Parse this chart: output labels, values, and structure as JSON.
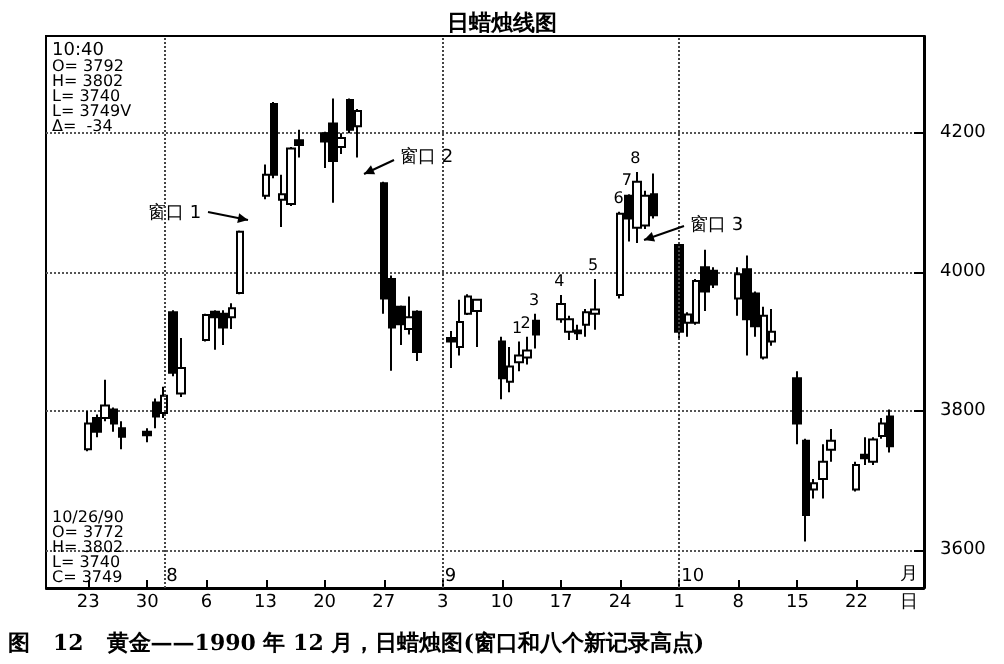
{
  "chart_data": {
    "type": "candlestick",
    "title": "日蜡烛线图",
    "x": [
      "1990-07-23",
      "1990-07-24",
      "1990-07-25",
      "1990-07-26",
      "1990-07-27",
      "1990-07-30",
      "1990-07-31",
      "1990-08-01",
      "1990-08-02",
      "1990-08-03",
      "1990-08-06",
      "1990-08-07",
      "1990-08-08",
      "1990-08-09",
      "1990-08-10",
      "1990-08-13",
      "1990-08-14",
      "1990-08-15",
      "1990-08-16",
      "1990-08-17",
      "1990-08-20",
      "1990-08-21",
      "1990-08-22",
      "1990-08-23",
      "1990-08-24",
      "1990-08-27",
      "1990-08-28",
      "1990-08-29",
      "1990-08-30",
      "1990-08-31",
      "1990-09-04",
      "1990-09-05",
      "1990-09-06",
      "1990-09-07",
      "1990-09-10",
      "1990-09-11",
      "1990-09-12",
      "1990-09-13",
      "1990-09-14",
      "1990-09-17",
      "1990-09-18",
      "1990-09-19",
      "1990-09-20",
      "1990-09-21",
      "1990-09-24",
      "1990-09-25",
      "1990-09-26",
      "1990-09-27",
      "1990-09-28",
      "1990-10-01",
      "1990-10-02",
      "1990-10-03",
      "1990-10-04",
      "1990-10-05",
      "1990-10-08",
      "1990-10-09",
      "1990-10-10",
      "1990-10-11",
      "1990-10-12",
      "1990-10-15",
      "1990-10-16",
      "1990-10-17",
      "1990-10-18",
      "1990-10-19",
      "1990-10-22",
      "1990-10-23",
      "1990-10-24",
      "1990-10-25",
      "1990-10-26"
    ],
    "ohlc": [
      [
        3745,
        3800,
        3742,
        3782
      ],
      [
        3790,
        3795,
        3762,
        3770
      ],
      [
        3790,
        3845,
        3785,
        3808
      ],
      [
        3802,
        3805,
        3770,
        3782
      ],
      [
        3775,
        3785,
        3745,
        3763
      ],
      [
        3770,
        3775,
        3755,
        3765
      ],
      [
        3812,
        3818,
        3775,
        3792
      ],
      [
        3797,
        3835,
        3790,
        3822
      ],
      [
        3942,
        3945,
        3850,
        3855
      ],
      [
        3825,
        3905,
        3820,
        3862
      ],
      [
        3902,
        3940,
        3900,
        3938
      ],
      [
        3943,
        3945,
        3888,
        3935
      ],
      [
        3940,
        3945,
        3895,
        3920
      ],
      [
        3935,
        3955,
        3918,
        3948
      ],
      [
        3970,
        4060,
        3968,
        4058
      ],
      [
        4110,
        4155,
        4105,
        4140
      ],
      [
        4242,
        4245,
        4135,
        4140
      ],
      [
        4104,
        4140,
        4065,
        4112
      ],
      [
        4098,
        4180,
        4095,
        4178
      ],
      [
        4190,
        4205,
        4165,
        4183
      ],
      [
        4200,
        4202,
        4150,
        4188
      ],
      [
        4214,
        4250,
        4100,
        4160
      ],
      [
        4180,
        4200,
        4170,
        4193
      ],
      [
        4248,
        4250,
        4200,
        4205
      ],
      [
        4210,
        4235,
        4165,
        4232
      ],
      [
        4128,
        4130,
        3940,
        3962
      ],
      [
        3990,
        3995,
        3858,
        3920
      ],
      [
        3950,
        3952,
        3895,
        3925
      ],
      [
        3918,
        3965,
        3910,
        3935
      ],
      [
        3943,
        3945,
        3872,
        3885
      ],
      [
        3905,
        3915,
        3862,
        3900
      ],
      [
        3892,
        3960,
        3880,
        3928
      ],
      [
        3940,
        3968,
        3938,
        3965
      ],
      [
        3944,
        3960,
        3892,
        3960
      ],
      [
        3900,
        3907,
        3817,
        3847
      ],
      [
        3842,
        3892,
        3827,
        3864
      ],
      [
        3870,
        3900,
        3857,
        3880
      ],
      [
        3877,
        3907,
        3867,
        3887
      ],
      [
        3930,
        3940,
        3890,
        3910
      ],
      [
        3932,
        3967,
        3927,
        3954
      ],
      [
        3914,
        3937,
        3902,
        3932
      ],
      [
        3916,
        3924,
        3902,
        3912
      ],
      [
        3924,
        3947,
        3907,
        3942
      ],
      [
        3940,
        3990,
        3917,
        3946
      ],
      [
        3967,
        4087,
        3962,
        4084
      ],
      [
        4110,
        4112,
        4044,
        4077
      ],
      [
        4064,
        4144,
        4042,
        4130
      ],
      [
        4067,
        4117,
        4062,
        4110
      ],
      [
        4112,
        4142,
        4077,
        4082
      ],
      [
        4039,
        4042,
        3902,
        3914
      ],
      [
        3927,
        3942,
        3907,
        3939
      ],
      [
        3927,
        3990,
        3924,
        3987
      ],
      [
        4007,
        4032,
        3944,
        3972
      ],
      [
        4002,
        4007,
        3977,
        3982
      ],
      [
        3962,
        4007,
        3937,
        3997
      ],
      [
        4004,
        4024,
        3880,
        3932
      ],
      [
        3969,
        3972,
        3907,
        3922
      ],
      [
        3877,
        3950,
        3874,
        3937
      ],
      [
        3900,
        3947,
        3894,
        3914
      ],
      [
        3847,
        3857,
        3752,
        3782
      ],
      [
        3757,
        3760,
        3612,
        3650
      ],
      [
        3687,
        3702,
        3674,
        3696
      ],
      [
        3702,
        3752,
        3674,
        3727
      ],
      [
        3744,
        3774,
        3727,
        3757
      ],
      [
        3687,
        3727,
        3684,
        3722
      ],
      [
        3737,
        3762,
        3722,
        3732
      ],
      [
        3727,
        3762,
        3722,
        3759
      ],
      [
        3764,
        3790,
        3760,
        3782
      ],
      [
        3792,
        3802,
        3740,
        3749
      ]
    ],
    "color": "#000000",
    "xlim": [
      "1990-07-18",
      "1990-10-30"
    ],
    "ylim": [
      3545,
      4340
    ],
    "yticks": [
      3600,
      3800,
      4000,
      4200
    ],
    "xticks": [
      {
        "value": "1990-07-23",
        "label": "23"
      },
      {
        "value": "1990-07-30",
        "label": "30"
      },
      {
        "value": "1990-08-06",
        "label": "6"
      },
      {
        "value": "1990-08-13",
        "label": "13"
      },
      {
        "value": "1990-08-20",
        "label": "20"
      },
      {
        "value": "1990-08-27",
        "label": "27"
      },
      {
        "value": "1990-09-03",
        "label": "3"
      },
      {
        "value": "1990-09-10",
        "label": "10"
      },
      {
        "value": "1990-09-17",
        "label": "17"
      },
      {
        "value": "1990-09-24",
        "label": "24"
      },
      {
        "value": "1990-10-01",
        "label": "1"
      },
      {
        "value": "1990-10-08",
        "label": "8"
      },
      {
        "value": "1990-10-15",
        "label": "15"
      },
      {
        "value": "1990-10-22",
        "label": "22"
      }
    ],
    "grid": "y",
    "ref_lines": [
      {
        "axis": "x",
        "value": "1990-08-01",
        "label": "8",
        "line_style": "dotted"
      },
      {
        "axis": "x",
        "value": "1990-09-03",
        "label": "9",
        "line_style": "dotted"
      },
      {
        "axis": "x",
        "value": "1990-10-01",
        "label": "10",
        "line_style": "dotted"
      }
    ],
    "annotations": [
      "10:40",
      "O= 3792\nH= 3802\nL= 3740\nL= 3749V\nΔ=  -34",
      "10/26/90\nO= 3772\nH= 3802\nL= 3740\nC= 3749",
      "月",
      "日",
      "图   12   黄金——1990 年 12 月，日蜡烛图(窗口和八个新记录高点)",
      "窗口 1",
      "窗口 2",
      "窗口 3",
      {
        "text": "1",
        "x": "1990-09-12",
        "y": 3900
      },
      {
        "text": "2",
        "x": "1990-09-13",
        "y": 3907
      },
      {
        "text": "3",
        "x": "1990-09-14",
        "y": 3940
      },
      {
        "text": "4",
        "x": "1990-09-17",
        "y": 3967
      },
      {
        "text": "5",
        "x": "1990-09-21",
        "y": 3990
      },
      {
        "text": "6",
        "x": "1990-09-24",
        "y": 4087
      },
      {
        "text": "7",
        "x": "1990-09-25",
        "y": 4112
      },
      {
        "text": "8",
        "x": "1990-09-26",
        "y": 4144
      }
    ]
  }
}
